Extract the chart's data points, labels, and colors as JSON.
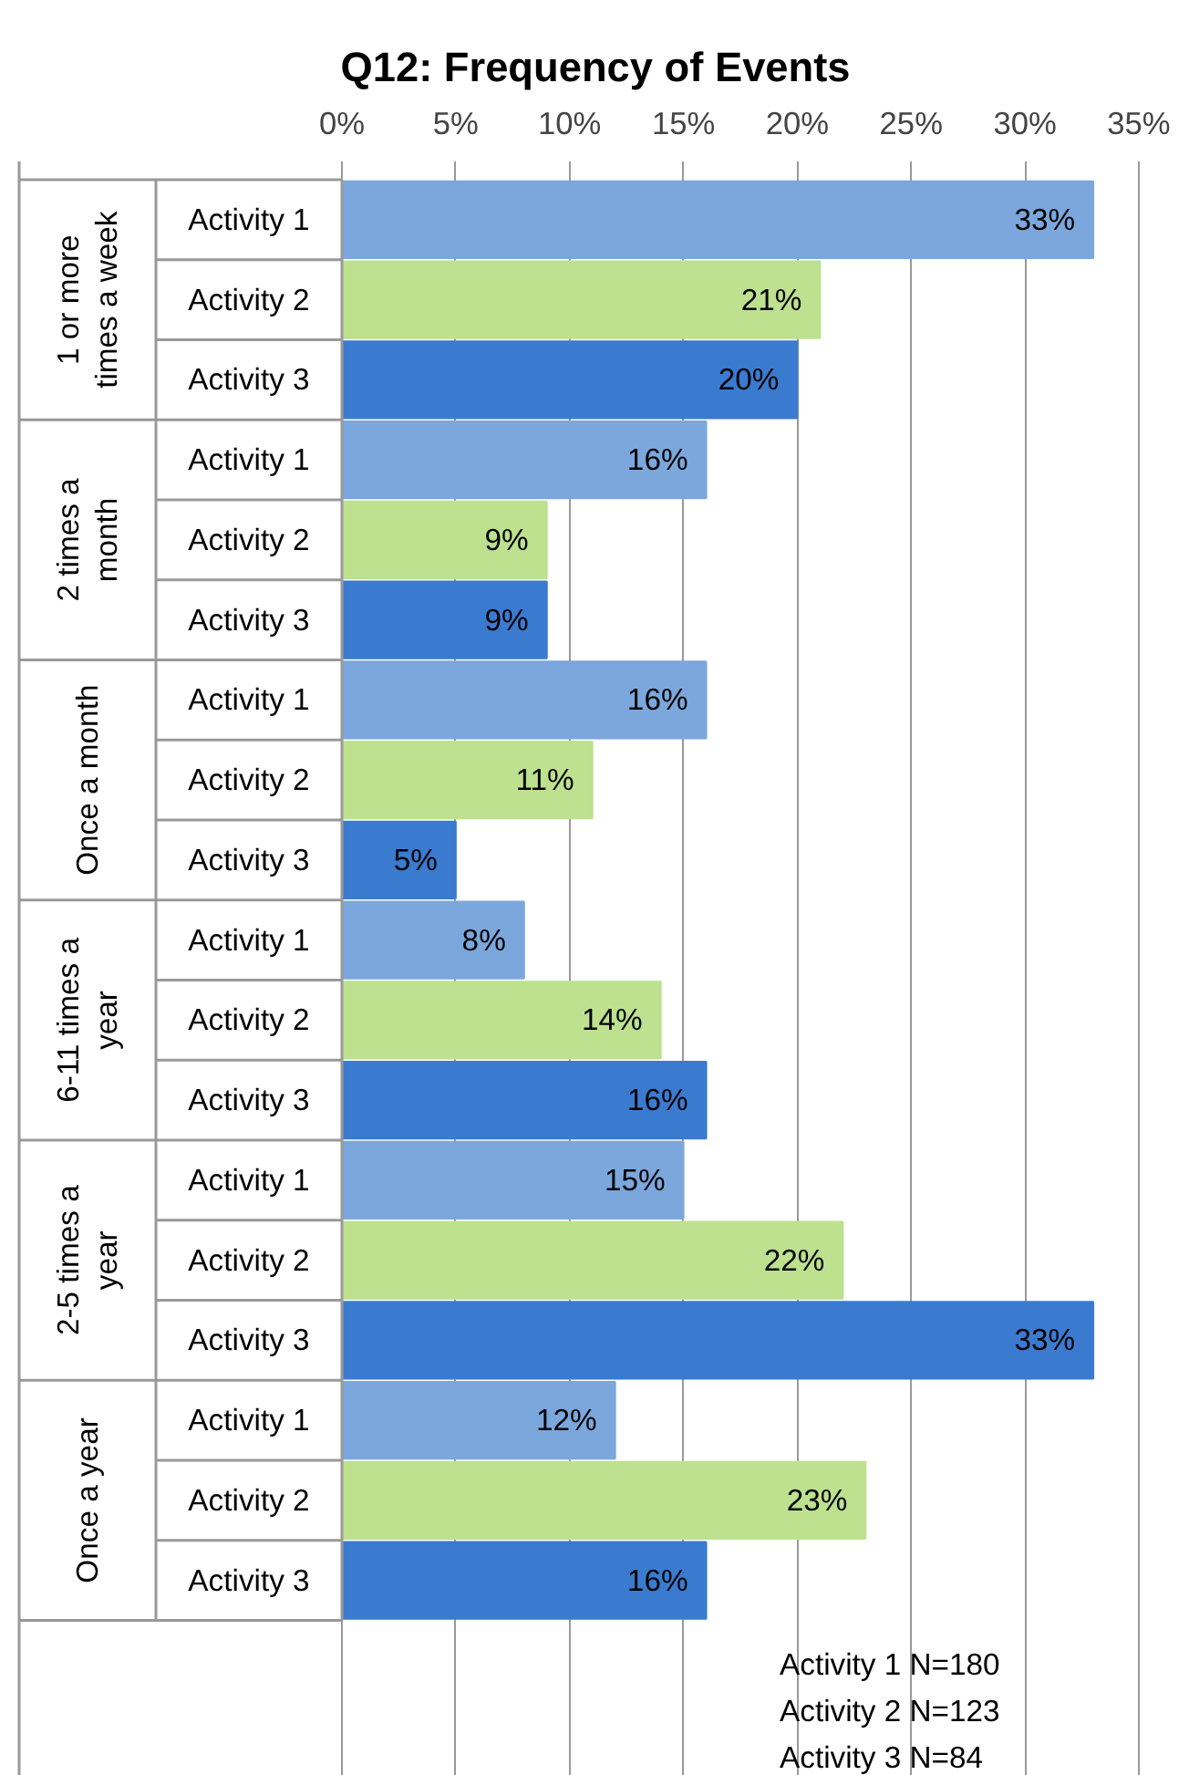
{
  "chart_data": {
    "type": "bar",
    "orientation": "horizontal",
    "title": "Q12: Frequency of Events",
    "categories": [
      "1 or more times a week",
      "2 times a month",
      "Once a month",
      "6-11 times a year",
      "2-5 times a year",
      "Once a year"
    ],
    "series": [
      {
        "name": "Activity 1",
        "color": "#7ba7dd",
        "values": [
          33,
          16,
          16,
          8,
          15,
          12
        ],
        "value_labels": [
          "33%",
          "16%",
          "16%",
          "8%",
          "15%",
          "12%"
        ]
      },
      {
        "name": "Activity 2",
        "color": "#bde18f",
        "values": [
          21,
          9,
          11,
          14,
          22,
          23
        ],
        "value_labels": [
          "21%",
          "9%",
          "11%",
          "14%",
          "22%",
          "23%"
        ]
      },
      {
        "name": "Activity 3",
        "color": "#3a7bd0",
        "values": [
          20,
          9,
          5,
          16,
          33,
          16
        ],
        "value_labels": [
          "20%",
          "9%",
          "5%",
          "16%",
          "33%",
          "16%"
        ]
      }
    ],
    "xlim": [
      0,
      35
    ],
    "xticks": [
      {
        "value": 0,
        "label": "0%"
      },
      {
        "value": 5,
        "label": "5%"
      },
      {
        "value": 10,
        "label": "10%"
      },
      {
        "value": 15,
        "label": "15%"
      },
      {
        "value": 20,
        "label": "20%"
      },
      {
        "value": 25,
        "label": "25%"
      },
      {
        "value": 30,
        "label": "30%"
      },
      {
        "value": 35,
        "label": "35%"
      }
    ],
    "grid": "x",
    "annotations": [
      "Activity 1 N=180",
      "Activity 2 N=123",
      "Activity 3 N=84"
    ]
  }
}
